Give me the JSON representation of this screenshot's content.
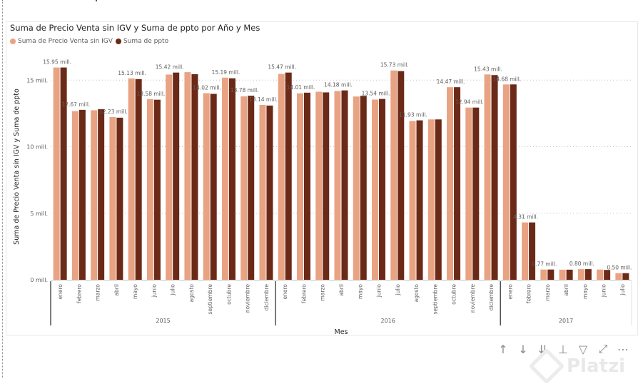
{
  "chart_title": "Suma de Precio Venta sin IGV y Suma de ppto por Año y Mes",
  "legend": [
    {
      "label": "Suma de Precio Venta sin IGV",
      "color": "#e8a383"
    },
    {
      "label": "Suma de ppto",
      "color": "#6b2a17"
    }
  ],
  "toolbar": {
    "icons": [
      "arrow-up-icon",
      "arrow-down-icon",
      "double-arrow-down-icon",
      "expand-hierarchy-icon",
      "filter-icon",
      "focus-mode-icon",
      "more-options-icon"
    ],
    "glyphs": [
      "↑",
      "↓",
      "⇊",
      "⊥",
      "▽",
      "⤢",
      "⋯"
    ]
  },
  "watermark": "Platzi",
  "chart_data": {
    "type": "bar",
    "title": "Suma de Precio Venta sin IGV y Suma de ppto por Año y Mes",
    "xlabel": "Mes",
    "ylabel": "Suma de Precio Venta sin IGV y Suma de ppto",
    "ylim": [
      0,
      17
    ],
    "yticks": [
      {
        "value": 0,
        "label": "0 mill."
      },
      {
        "value": 5,
        "label": "5 mill."
      },
      {
        "value": 10,
        "label": "10 mill."
      },
      {
        "value": 15,
        "label": "15 mill."
      }
    ],
    "grid": true,
    "legend_position": "top-left",
    "groups": [
      {
        "year": "2015",
        "months": [
          "enero",
          "febrero",
          "marzo",
          "abril",
          "mayo",
          "junio",
          "julio",
          "agosto",
          "septiembre",
          "octubre",
          "noviembre",
          "diciembre"
        ]
      },
      {
        "year": "2016",
        "months": [
          "enero",
          "febrero",
          "marzo",
          "abril",
          "mayo",
          "junio",
          "julio",
          "agosto",
          "septiembre",
          "octubre",
          "noviembre",
          "diciembre"
        ]
      },
      {
        "year": "2017",
        "months": [
          "enero",
          "febrero",
          "marzo",
          "abril",
          "mayo",
          "junio",
          "julio"
        ]
      }
    ],
    "series": [
      {
        "name": "Suma de Precio Venta sin IGV",
        "color": "#e8a383",
        "values": [
          15.95,
          12.67,
          12.74,
          12.23,
          15.13,
          13.58,
          15.42,
          15.6,
          14.02,
          15.19,
          13.78,
          13.14,
          15.47,
          14.01,
          14.13,
          14.18,
          13.77,
          13.54,
          15.73,
          11.93,
          12.05,
          14.47,
          12.94,
          15.43,
          14.68,
          4.31,
          0.77,
          0.76,
          0.8,
          0.77,
          0.5
        ]
      },
      {
        "name": "Suma de ppto",
        "color": "#6b2a17",
        "values": [
          15.95,
          12.77,
          12.82,
          12.18,
          15.08,
          13.53,
          15.57,
          15.45,
          13.97,
          15.14,
          13.83,
          13.09,
          15.57,
          14.06,
          14.08,
          14.23,
          13.82,
          13.59,
          15.68,
          11.98,
          12.05,
          14.47,
          12.94,
          15.38,
          14.68,
          4.31,
          0.77,
          0.76,
          0.8,
          0.74,
          0.5
        ]
      }
    ],
    "data_labels": [
      "15.95 mill.",
      "12.67 mill.",
      "",
      "12.23 mill.",
      "15.13 mill.",
      "13.58 mill.",
      "15.42 mill.",
      "",
      "14.02 mill.",
      "15.19 mill.",
      "13.78 mill.",
      "13.14 mill.",
      "15.47 mill.",
      "14.01 mill.",
      "",
      "14.18 mill.",
      "",
      "13.54 mill.",
      "15.73 mill.",
      "11.93 mill.",
      "",
      "14.47 mill.",
      "12.94 mill.",
      "15.43 mill.",
      "14.68 mill.",
      "4.31 mill.",
      "0.77 mill.",
      "",
      "0.80 mill.",
      "",
      "0.50 mill."
    ]
  }
}
